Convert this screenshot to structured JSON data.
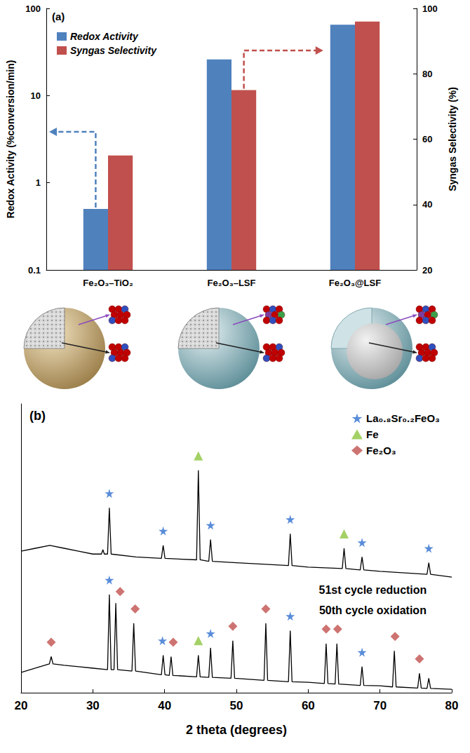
{
  "chart_data": [
    {
      "type": "bar",
      "categories": [
        "Fe₂O₃–TiO₂",
        "Fe₂O₃–LSF",
        "Fe₂O₃@LSF"
      ],
      "series": [
        {
          "name": "Redox Activity",
          "color": "#4F81BD",
          "values": [
            0.5,
            26,
            65
          ]
        },
        {
          "name": "Syngas Selectivity",
          "color": "#C0504D",
          "values": [
            55,
            75,
            96
          ],
          "axis": "y2"
        }
      ],
      "y_label": "Redox Activity (%conversion/min)",
      "y2_label": "Syngas Selectivity (%)",
      "ylim": [
        0.1,
        100
      ],
      "yticks": [
        0.1,
        1,
        10,
        100
      ],
      "y2lim": [
        20,
        100
      ],
      "y2ticks": [
        20,
        40,
        60,
        80,
        100
      ],
      "log": "y",
      "grid": false,
      "legend": "upper left",
      "annotations": [
        "(a)"
      ]
    },
    {
      "type": "line",
      "x_label": "2 theta (degrees)",
      "xlim": [
        20,
        80
      ],
      "xticks": [
        20,
        30,
        40,
        50,
        60,
        70,
        80
      ],
      "ylim": [
        0,
        100
      ],
      "tick_labels": "x",
      "grid": false,
      "legend": "upper right",
      "annotations": [
        "(b)"
      ],
      "series": [
        {
          "name": "51st cycle reduction",
          "color": "#000000",
          "x": [
            20,
            22,
            24,
            26,
            28,
            30,
            31.2,
            31.4,
            31.6,
            32.05,
            32.3,
            32.55,
            36,
            39.55,
            39.8,
            40.05,
            44.45,
            44.7,
            44.95,
            46.15,
            46.4,
            46.65,
            50,
            57.25,
            57.5,
            57.75,
            60,
            64.75,
            65,
            65.25,
            67.25,
            67.5,
            67.75,
            70,
            76.55,
            76.8,
            77.05,
            80
          ],
          "values": [
            49,
            50,
            51,
            50,
            49,
            48,
            48,
            49.5,
            48,
            48,
            64,
            48,
            47,
            46.5,
            51,
            46.5,
            46,
            77,
            46,
            45.5,
            53,
            45.5,
            45,
            44,
            55,
            44,
            43.5,
            43,
            50,
            43,
            42.5,
            47,
            42.5,
            42,
            41,
            45,
            41,
            40
          ]
        },
        {
          "name": "50th cycle oxidation",
          "color": "#000000",
          "x": [
            20,
            22,
            23.95,
            24.2,
            24.45,
            26,
            28,
            30,
            32.05,
            32.3,
            32.55,
            32.95,
            33.2,
            33.45,
            35.45,
            35.7,
            35.95,
            39.55,
            39.8,
            40.05,
            40.65,
            40.9,
            41.15,
            44.45,
            44.7,
            44.95,
            46.15,
            46.4,
            46.65,
            49.25,
            49.5,
            49.75,
            53.85,
            54.1,
            54.35,
            57.25,
            57.5,
            57.75,
            60,
            62.25,
            62.5,
            62.75,
            63.75,
            64,
            64.25,
            67.25,
            67.5,
            67.75,
            70,
            71.75,
            72,
            72.25,
            75.25,
            75.5,
            75.75,
            76.55,
            76.8,
            77.05,
            80
          ],
          "values": [
            7,
            8.5,
            10,
            12.5,
            10,
            9.5,
            9,
            8.5,
            8,
            34,
            8,
            8,
            31,
            8,
            7.5,
            24,
            7.5,
            6.2,
            13,
            6.2,
            6,
            12.5,
            6,
            5.5,
            13,
            5.5,
            5.3,
            15.5,
            5.3,
            5,
            18,
            5,
            4.3,
            24,
            4.3,
            3.8,
            21.5,
            3.8,
            3.6,
            3.2,
            17,
            3.2,
            3,
            17,
            3,
            2.5,
            9,
            2.5,
            2.4,
            2,
            14.5,
            2,
            1.6,
            6.7,
            1.6,
            1.5,
            5,
            1.5,
            1.2
          ]
        },
        {
          "name": "La₀.₈Sr₀.₂FeO₃",
          "type": "scatter",
          "marker": "star",
          "color": "#2F6FD0",
          "x": [
            32.3,
            39.8,
            46.4,
            57.5,
            67.5,
            76.8,
            32.3,
            39.7,
            46.4,
            57.5,
            67.5
          ],
          "values": [
            69,
            56,
            58,
            60,
            52,
            50,
            39,
            18,
            20.5,
            26.5,
            14
          ]
        },
        {
          "name": "Fe",
          "type": "scatter",
          "marker": "triangle",
          "color": "#8CC63E",
          "x": [
            44.7,
            65,
            44.7
          ],
          "values": [
            82,
            55,
            18
          ]
        },
        {
          "name": "Fe₂O₃",
          "type": "scatter",
          "marker": "diamond",
          "color": "#C0504D",
          "x": [
            24.2,
            33.8,
            35.9,
            41.2,
            49.5,
            54.1,
            62.5,
            64.1,
            72.1,
            75.5
          ],
          "values": [
            17.5,
            35,
            29,
            17.5,
            23,
            29,
            22,
            22,
            19.5,
            11.7
          ]
        }
      ]
    }
  ]
}
